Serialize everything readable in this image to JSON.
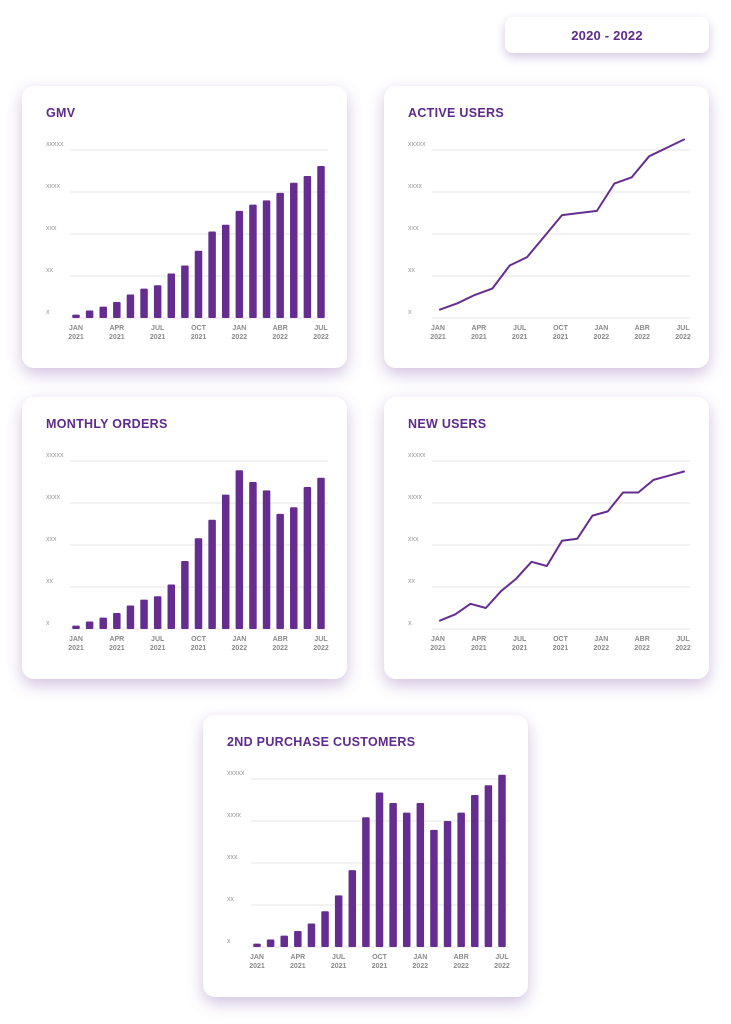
{
  "header": {
    "date_range": "2020 - 2022"
  },
  "colors": {
    "accent": "#662d91",
    "title": "#5e2a8c",
    "grid": "#e6e6e6"
  },
  "y_tick_labels": [
    "x",
    "xx",
    "xxx",
    "xxxx",
    "xxxxx"
  ],
  "x_tick_labels": [
    {
      "month": "JAN",
      "year": "2021"
    },
    {
      "month": "APR",
      "year": "2021"
    },
    {
      "month": "JUL",
      "year": "2021"
    },
    {
      "month": "OCT",
      "year": "2021"
    },
    {
      "month": "JAN",
      "year": "2022"
    },
    {
      "month": "ABR",
      "year": "2022"
    },
    {
      "month": "JUL",
      "year": "2022"
    }
  ],
  "chart_data": [
    {
      "id": "gmv",
      "type": "bar",
      "title": "GMV",
      "ylim": [
        0,
        4
      ],
      "grid": true,
      "values": [
        0.08,
        0.18,
        0.27,
        0.38,
        0.56,
        0.7,
        0.78,
        1.06,
        1.25,
        1.6,
        2.06,
        2.22,
        2.55,
        2.7,
        2.8,
        2.98,
        3.22,
        3.38,
        3.62
      ]
    },
    {
      "id": "active",
      "type": "line",
      "title": "ACTIVE USERS",
      "ylim": [
        0,
        4
      ],
      "grid": true,
      "values": [
        0.2,
        0.35,
        0.55,
        0.7,
        1.25,
        1.45,
        1.95,
        2.45,
        2.5,
        2.55,
        3.2,
        3.35,
        3.85,
        4.05,
        4.25
      ]
    },
    {
      "id": "orders",
      "type": "bar",
      "title": "MONTHLY ORDERS",
      "ylim": [
        0,
        4
      ],
      "grid": true,
      "values": [
        0.08,
        0.18,
        0.27,
        0.38,
        0.56,
        0.7,
        0.78,
        1.06,
        1.62,
        2.16,
        2.6,
        3.2,
        3.78,
        3.5,
        3.3,
        2.74,
        2.9,
        3.38,
        3.6
      ]
    },
    {
      "id": "new",
      "type": "line",
      "title": "NEW USERS",
      "ylim": [
        0,
        4
      ],
      "grid": true,
      "values": [
        0.2,
        0.35,
        0.6,
        0.5,
        0.9,
        1.2,
        1.6,
        1.5,
        2.1,
        2.15,
        2.7,
        2.8,
        3.25,
        3.25,
        3.55,
        3.65,
        3.75
      ]
    },
    {
      "id": "second",
      "type": "bar",
      "title": "2ND PURCHASE CUSTOMERS",
      "ylim": [
        0,
        4
      ],
      "grid": true,
      "values": [
        0.08,
        0.18,
        0.27,
        0.38,
        0.56,
        0.85,
        1.23,
        1.83,
        3.09,
        3.68,
        3.43,
        3.2,
        3.43,
        2.79,
        3.0,
        3.2,
        3.62,
        3.85,
        4.1
      ]
    }
  ]
}
